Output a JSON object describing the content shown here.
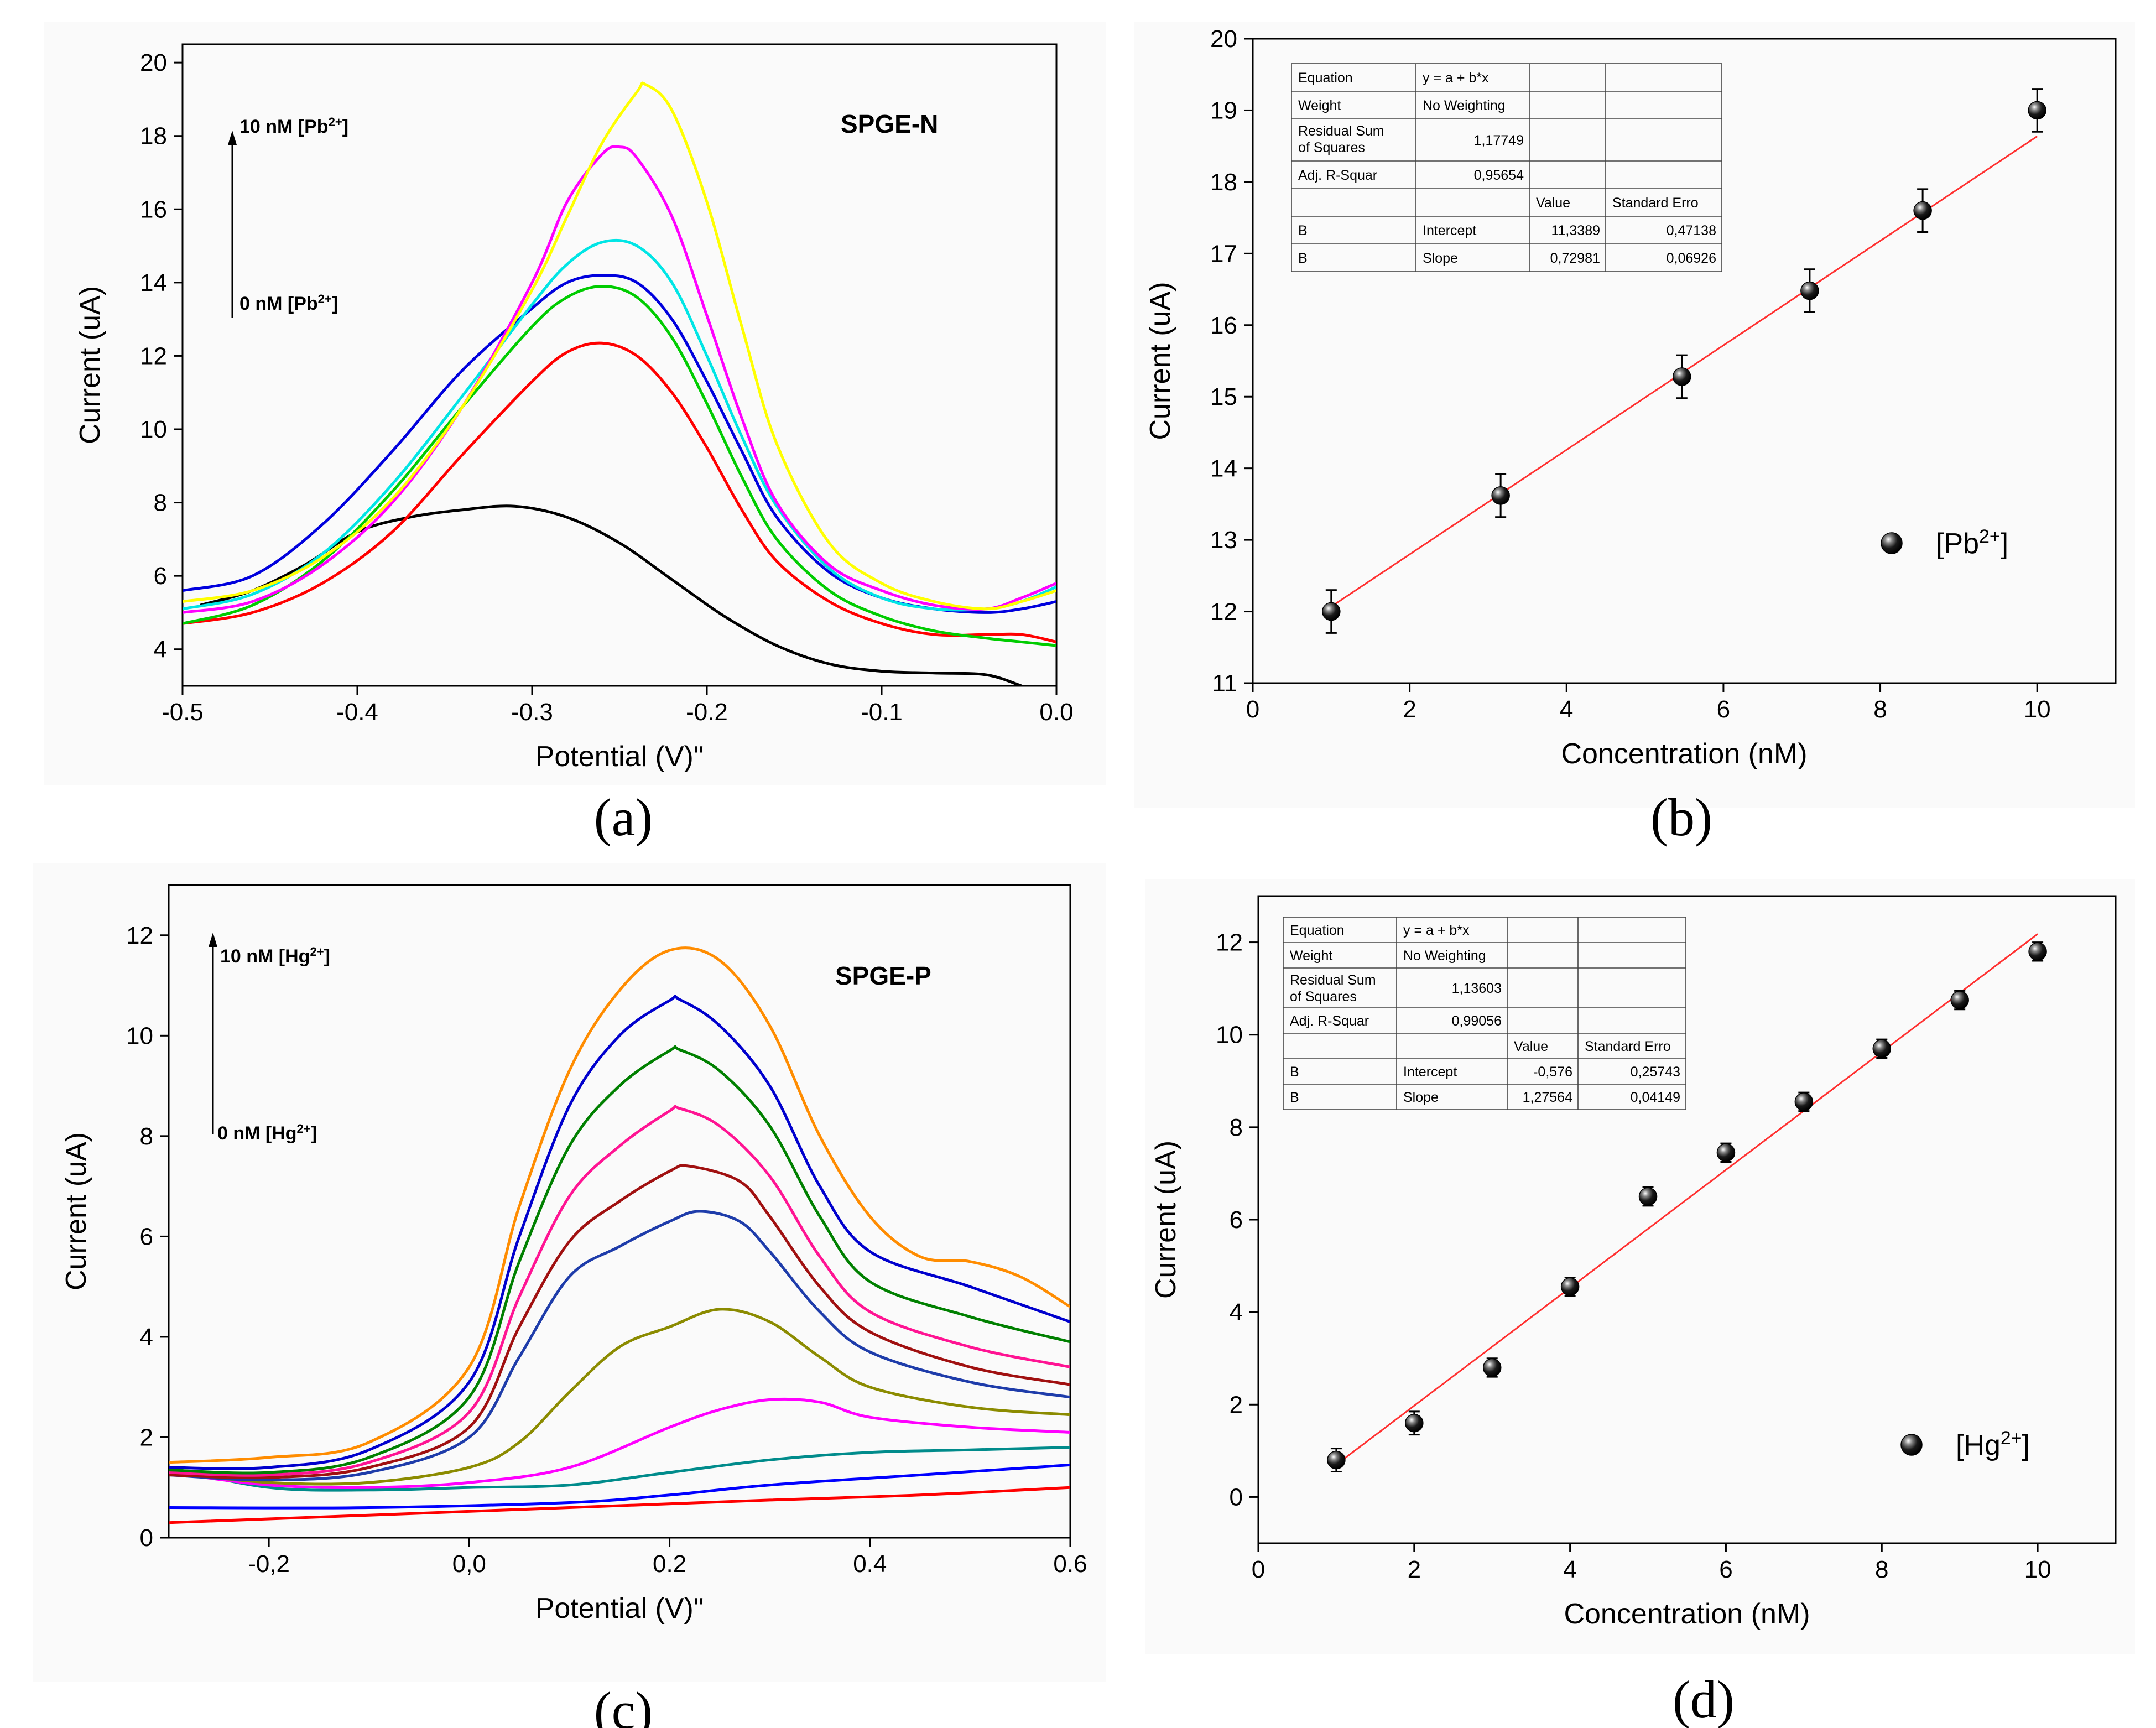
{
  "chart_data": [
    {
      "panel": "a",
      "type": "line",
      "caption": "(a)",
      "xlabel": "Potential (V)\"",
      "ylabel": "Current (uA)",
      "xlim": [
        -0.5,
        0.0
      ],
      "ylim": [
        3,
        20.5
      ],
      "xticks": [
        -0.5,
        -0.4,
        -0.3,
        -0.2,
        -0.1,
        0.0
      ],
      "xtick_labels": [
        "-0.5",
        "-0.4",
        "-0.3",
        "-0.2",
        "-0.1",
        "0.0"
      ],
      "yticks": [
        4,
        6,
        8,
        10,
        12,
        14,
        16,
        18,
        20
      ],
      "ytick_labels": [
        "4",
        "6",
        "8",
        "10",
        "12",
        "14",
        "16",
        "18",
        "20"
      ],
      "annotation": "SPGE-N",
      "arrow_top_label": "10 nM [Pb2+]",
      "arrow_bottom_label": "0 nM [Pb2+]",
      "series": [
        {
          "color": "#000000",
          "x": [
            -0.49,
            -0.46,
            -0.43,
            -0.4,
            -0.37,
            -0.34,
            -0.31,
            -0.28,
            -0.25,
            -0.22,
            -0.19,
            -0.16,
            -0.13,
            -0.1,
            -0.07,
            -0.04,
            -0.02
          ],
          "y": [
            5.2,
            5.6,
            6.3,
            7.2,
            7.6,
            7.8,
            7.9,
            7.6,
            6.9,
            5.9,
            4.9,
            4.1,
            3.6,
            3.4,
            3.35,
            3.3,
            3.0
          ]
        },
        {
          "color": "#ff0000",
          "x": [
            -0.5,
            -0.46,
            -0.42,
            -0.38,
            -0.34,
            -0.3,
            -0.28,
            -0.26,
            -0.24,
            -0.22,
            -0.2,
            -0.18,
            -0.16,
            -0.13,
            -0.1,
            -0.07,
            -0.04,
            -0.02,
            0.0
          ],
          "y": [
            4.7,
            5.0,
            5.8,
            7.2,
            9.3,
            11.3,
            12.1,
            12.35,
            12.0,
            11.0,
            9.5,
            7.8,
            6.4,
            5.3,
            4.7,
            4.4,
            4.4,
            4.4,
            4.2
          ]
        },
        {
          "color": "#00cc00",
          "x": [
            -0.5,
            -0.46,
            -0.42,
            -0.38,
            -0.34,
            -0.3,
            -0.28,
            -0.26,
            -0.24,
            -0.22,
            -0.2,
            -0.18,
            -0.16,
            -0.13,
            -0.1,
            -0.07,
            -0.04,
            -0.02,
            0.0
          ],
          "y": [
            4.7,
            5.2,
            6.4,
            8.3,
            10.6,
            12.8,
            13.6,
            13.9,
            13.6,
            12.5,
            10.7,
            8.7,
            7.0,
            5.6,
            4.9,
            4.5,
            4.3,
            4.2,
            4.1
          ]
        },
        {
          "color": "#0000dd",
          "x": [
            -0.5,
            -0.46,
            -0.42,
            -0.38,
            -0.34,
            -0.3,
            -0.28,
            -0.26,
            -0.24,
            -0.22,
            -0.2,
            -0.18,
            -0.16,
            -0.13,
            -0.1,
            -0.07,
            -0.04,
            -0.02,
            0.0
          ],
          "y": [
            5.6,
            6.0,
            7.4,
            9.4,
            11.6,
            13.3,
            14.0,
            14.2,
            14.0,
            13.0,
            11.3,
            9.4,
            7.6,
            6.1,
            5.4,
            5.1,
            5.0,
            5.1,
            5.3
          ]
        },
        {
          "color": "#00e5e5",
          "x": [
            -0.5,
            -0.46,
            -0.42,
            -0.38,
            -0.34,
            -0.3,
            -0.28,
            -0.26,
            -0.24,
            -0.22,
            -0.2,
            -0.18,
            -0.16,
            -0.13,
            -0.1,
            -0.07,
            -0.04,
            -0.02,
            0.0
          ],
          "y": [
            5.1,
            5.5,
            6.6,
            8.5,
            10.9,
            13.4,
            14.5,
            15.1,
            15.0,
            14.0,
            12.0,
            9.8,
            7.9,
            6.2,
            5.4,
            5.1,
            5.1,
            5.3,
            5.7
          ]
        },
        {
          "color": "#ff00ff",
          "x": [
            -0.5,
            -0.46,
            -0.42,
            -0.38,
            -0.34,
            -0.3,
            -0.28,
            -0.26,
            -0.25,
            -0.24,
            -0.22,
            -0.2,
            -0.18,
            -0.16,
            -0.13,
            -0.1,
            -0.07,
            -0.04,
            -0.02,
            0.0
          ],
          "y": [
            5.0,
            5.3,
            6.3,
            8.0,
            10.6,
            14.0,
            16.2,
            17.5,
            17.7,
            17.4,
            15.8,
            13.1,
            10.3,
            8.0,
            6.3,
            5.6,
            5.2,
            5.1,
            5.4,
            5.8
          ]
        },
        {
          "color": "#ffff00",
          "x": [
            -0.5,
            -0.46,
            -0.42,
            -0.38,
            -0.34,
            -0.3,
            -0.28,
            -0.26,
            -0.24,
            -0.235,
            -0.22,
            -0.2,
            -0.18,
            -0.16,
            -0.13,
            -0.1,
            -0.07,
            -0.04,
            -0.02,
            0.0
          ],
          "y": [
            5.3,
            5.6,
            6.5,
            8.1,
            10.6,
            13.8,
            15.8,
            17.8,
            19.2,
            19.4,
            18.7,
            16.2,
            12.8,
            9.6,
            6.9,
            5.8,
            5.3,
            5.1,
            5.3,
            5.6
          ]
        }
      ]
    },
    {
      "panel": "b",
      "type": "scatter",
      "caption": "(b)",
      "xlabel": "Concentration (nM)",
      "ylabel": "Current (uA)",
      "xlim": [
        0,
        11
      ],
      "ylim": [
        11,
        20
      ],
      "xticks": [
        0,
        2,
        4,
        6,
        8,
        10
      ],
      "xtick_labels": [
        "0",
        "2",
        "4",
        "6",
        "8",
        "10"
      ],
      "yticks": [
        11,
        12,
        13,
        14,
        15,
        16,
        17,
        18,
        19,
        20
      ],
      "ytick_labels": [
        "11",
        "12",
        "13",
        "14",
        "15",
        "16",
        "17",
        "18",
        "19",
        "20"
      ],
      "points": {
        "x": [
          1.0,
          3.16,
          5.47,
          7.1,
          8.54,
          10.0
        ],
        "y": [
          12.0,
          13.62,
          15.28,
          16.48,
          17.6,
          19.0
        ],
        "err": [
          0.3,
          0.3,
          0.3,
          0.3,
          0.3,
          0.3
        ]
      },
      "fit": {
        "intercept": 11.3389,
        "slope": 0.72981,
        "x_range": [
          1.0,
          10.0
        ]
      },
      "legend": {
        "label": "[Pb2+]",
        "position": "bottom-right"
      },
      "fit_table": [
        [
          "Equation",
          "y = a + b*x",
          "",
          ""
        ],
        [
          "Weight",
          "No Weighting",
          "",
          ""
        ],
        [
          "Residual Sum of Squares",
          "1,17749",
          "",
          ""
        ],
        [
          "Adj. R-Squar",
          "0,95654",
          "",
          ""
        ],
        [
          "",
          "",
          "Value",
          "Standard Erro"
        ],
        [
          "B",
          "Intercept",
          "11,3389",
          "0,47138"
        ],
        [
          "B",
          "Slope",
          "0,72981",
          "0,06926"
        ]
      ]
    },
    {
      "panel": "c",
      "type": "line",
      "caption": "(c)",
      "xlabel": "Potential (V)\"",
      "ylabel": "Current (uA)",
      "xlim": [
        -0.3,
        0.6
      ],
      "ylim": [
        0,
        13
      ],
      "xticks": [
        -0.2,
        0.0,
        0.2,
        0.4,
        0.6
      ],
      "xtick_labels": [
        "-0,2",
        "0,0",
        "0.2",
        "0.4",
        "0.6"
      ],
      "yticks": [
        0,
        2,
        4,
        6,
        8,
        10,
        12
      ],
      "ytick_labels": [
        "0",
        "2",
        "4",
        "6",
        "8",
        "10",
        "12"
      ],
      "annotation": "SPGE-P",
      "arrow_top_label": "10 nM [Hg2+]",
      "arrow_bottom_label": "0 nM [Hg2+]",
      "series": [
        {
          "color": "#ff0000",
          "x": [
            -0.3,
            -0.1,
            0.1,
            0.3,
            0.45,
            0.6
          ],
          "y": [
            0.3,
            0.45,
            0.6,
            0.75,
            0.85,
            1.0
          ]
        },
        {
          "color": "#0000ff",
          "x": [
            -0.3,
            -0.1,
            0.1,
            0.2,
            0.3,
            0.45,
            0.6
          ],
          "y": [
            0.6,
            0.6,
            0.7,
            0.85,
            1.05,
            1.25,
            1.45
          ]
        },
        {
          "color": "#008b8b",
          "x": [
            -0.3,
            -0.2,
            -0.1,
            0.0,
            0.1,
            0.2,
            0.3,
            0.4,
            0.5,
            0.6
          ],
          "y": [
            1.4,
            1.0,
            0.95,
            1.0,
            1.05,
            1.3,
            1.55,
            1.7,
            1.75,
            1.8
          ]
        },
        {
          "color": "#ff00ff",
          "x": [
            -0.3,
            -0.2,
            -0.1,
            0.0,
            0.1,
            0.2,
            0.25,
            0.3,
            0.35,
            0.4,
            0.5,
            0.6
          ],
          "y": [
            1.3,
            1.05,
            1.0,
            1.1,
            1.4,
            2.2,
            2.55,
            2.75,
            2.7,
            2.4,
            2.2,
            2.1
          ]
        },
        {
          "color": "#8b8b00",
          "x": [
            -0.3,
            -0.2,
            -0.1,
            0.0,
            0.05,
            0.1,
            0.15,
            0.2,
            0.25,
            0.3,
            0.35,
            0.4,
            0.5,
            0.6
          ],
          "y": [
            1.3,
            1.1,
            1.1,
            1.4,
            1.9,
            2.9,
            3.8,
            4.2,
            4.55,
            4.3,
            3.6,
            3.0,
            2.6,
            2.45
          ]
        },
        {
          "color": "#1e3caa",
          "x": [
            -0.3,
            -0.2,
            -0.1,
            0.0,
            0.05,
            0.1,
            0.15,
            0.2,
            0.23,
            0.27,
            0.3,
            0.35,
            0.4,
            0.5,
            0.6
          ],
          "y": [
            1.25,
            1.15,
            1.3,
            2.0,
            3.6,
            5.2,
            5.8,
            6.3,
            6.5,
            6.3,
            5.7,
            4.5,
            3.7,
            3.1,
            2.8
          ]
        },
        {
          "color": "#a01010",
          "x": [
            -0.3,
            -0.2,
            -0.1,
            0.0,
            0.05,
            0.1,
            0.15,
            0.2,
            0.22,
            0.27,
            0.3,
            0.35,
            0.4,
            0.5,
            0.6
          ],
          "y": [
            1.25,
            1.2,
            1.4,
            2.2,
            4.2,
            5.9,
            6.7,
            7.3,
            7.4,
            7.1,
            6.4,
            5.0,
            4.1,
            3.4,
            3.05
          ]
        },
        {
          "color": "#ff1493",
          "x": [
            -0.3,
            -0.2,
            -0.1,
            0.0,
            0.05,
            0.1,
            0.15,
            0.2,
            0.21,
            0.25,
            0.3,
            0.35,
            0.4,
            0.5,
            0.6
          ],
          "y": [
            1.3,
            1.25,
            1.5,
            2.5,
            4.8,
            6.8,
            7.8,
            8.5,
            8.55,
            8.2,
            7.2,
            5.6,
            4.5,
            3.8,
            3.4
          ]
        },
        {
          "color": "#008000",
          "x": [
            -0.3,
            -0.2,
            -0.1,
            0.0,
            0.05,
            0.1,
            0.15,
            0.2,
            0.21,
            0.25,
            0.3,
            0.35,
            0.4,
            0.5,
            0.6
          ],
          "y": [
            1.35,
            1.3,
            1.6,
            2.8,
            5.5,
            7.8,
            9.0,
            9.7,
            9.72,
            9.3,
            8.2,
            6.4,
            5.1,
            4.4,
            3.9
          ]
        },
        {
          "color": "#0000cd",
          "x": [
            -0.3,
            -0.2,
            -0.1,
            0.0,
            0.05,
            0.1,
            0.15,
            0.2,
            0.21,
            0.25,
            0.3,
            0.35,
            0.4,
            0.5,
            0.6
          ],
          "y": [
            1.4,
            1.4,
            1.75,
            3.1,
            6.0,
            8.6,
            10.0,
            10.7,
            10.72,
            10.2,
            9.0,
            7.0,
            5.7,
            5.0,
            4.3
          ]
        },
        {
          "color": "#ff8c00",
          "x": [
            -0.3,
            -0.2,
            -0.1,
            0.0,
            0.05,
            0.1,
            0.15,
            0.2,
            0.25,
            0.3,
            0.35,
            0.4,
            0.45,
            0.5,
            0.55,
            0.6
          ],
          "y": [
            1.5,
            1.6,
            1.9,
            3.4,
            6.6,
            9.3,
            10.9,
            11.7,
            11.5,
            10.2,
            8.0,
            6.4,
            5.6,
            5.5,
            5.2,
            4.6
          ]
        }
      ]
    },
    {
      "panel": "d",
      "type": "scatter",
      "caption": "(d)",
      "xlabel": "Concentration (nM)",
      "ylabel": "Current (uA)",
      "xlim": [
        0,
        11
      ],
      "ylim": [
        -1,
        13
      ],
      "xticks": [
        0,
        2,
        4,
        6,
        8,
        10
      ],
      "xtick_labels": [
        "0",
        "2",
        "4",
        "6",
        "8",
        "10"
      ],
      "yticks": [
        0,
        2,
        4,
        6,
        8,
        10,
        12
      ],
      "ytick_labels": [
        "0",
        "2",
        "4",
        "6",
        "8",
        "10",
        "12"
      ],
      "points": {
        "x": [
          1,
          2,
          3,
          4,
          5,
          6,
          7,
          8,
          9,
          10
        ],
        "y": [
          0.8,
          1.6,
          2.8,
          4.55,
          6.5,
          7.45,
          8.55,
          9.7,
          10.75,
          11.8
        ],
        "err": [
          0.25,
          0.25,
          0.2,
          0.2,
          0.2,
          0.2,
          0.2,
          0.2,
          0.2,
          0.2
        ]
      },
      "fit": {
        "intercept": -0.576,
        "slope": 1.27564,
        "x_range": [
          1,
          10
        ]
      },
      "legend": {
        "label": "[Hg2+]",
        "position": "bottom-right"
      },
      "fit_table": [
        [
          "Equation",
          "y = a + b*x",
          "",
          ""
        ],
        [
          "Weight",
          "No Weighting",
          "",
          ""
        ],
        [
          "Residual Sum of Squares",
          "1,13603",
          "",
          ""
        ],
        [
          "Adj. R-Squar",
          "0,99056",
          "",
          ""
        ],
        [
          "",
          "",
          "Value",
          "Standard Erro"
        ],
        [
          "B",
          "Intercept",
          "-0,576",
          "0,25743"
        ],
        [
          "B",
          "Slope",
          "1,27564",
          "0,04149"
        ]
      ]
    }
  ]
}
